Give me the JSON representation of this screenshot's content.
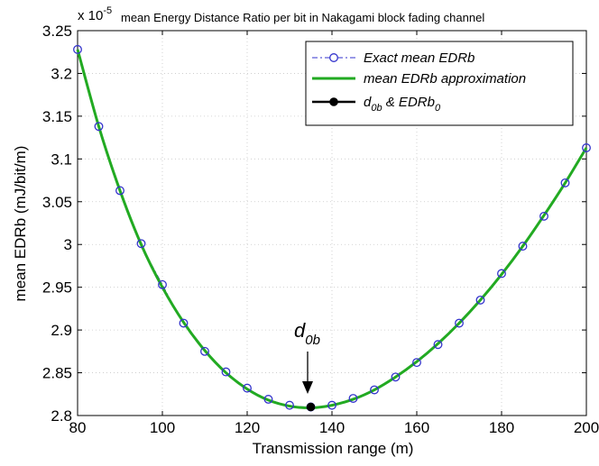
{
  "chart_data": {
    "type": "line",
    "title": "mean Energy Distance Ratio per bit in Nakagami block fading channel",
    "exponent_prefix": "x 10",
    "exponent_power": "-5",
    "xlabel": "Transmission range (m)",
    "ylabel": "mean EDRb (mJ/bit/m)",
    "xlim": [
      80,
      200
    ],
    "ylim": [
      2.8,
      3.25
    ],
    "xticks": [
      80,
      100,
      120,
      140,
      160,
      180,
      200
    ],
    "xtick_labels": [
      "80",
      "100",
      "120",
      "140",
      "160",
      "180",
      "200"
    ],
    "yticks": [
      2.8,
      2.85,
      2.9,
      2.95,
      3.0,
      3.05,
      3.1,
      3.15,
      3.2,
      3.25
    ],
    "ytick_labels": [
      "2.8",
      "2.85",
      "2.9",
      "2.95",
      "3",
      "3.05",
      "3.1",
      "3.15",
      "3.2",
      "3.25"
    ],
    "grid": true,
    "legend_position": "top-right",
    "series": [
      {
        "name": "Exact mean EDRb",
        "style": "dash-dot-circle",
        "color": "#3333cc",
        "x": [
          80,
          85,
          90,
          95,
          100,
          105,
          110,
          115,
          120,
          125,
          130,
          135,
          140,
          145,
          150,
          155,
          160,
          165,
          170,
          175,
          180,
          185,
          190,
          195,
          200
        ],
        "values": [
          3.228,
          3.138,
          3.063,
          3.001,
          2.953,
          2.908,
          2.875,
          2.851,
          2.832,
          2.819,
          2.812,
          2.81,
          2.812,
          2.82,
          2.83,
          2.845,
          2.862,
          2.883,
          2.908,
          2.935,
          2.966,
          2.998,
          3.033,
          3.072,
          3.113
        ]
      },
      {
        "name": "mean EDRb approximation",
        "style": "solid",
        "color": "#22aa22",
        "x": [
          80,
          85,
          90,
          95,
          100,
          105,
          110,
          115,
          120,
          125,
          130,
          135,
          140,
          145,
          150,
          155,
          160,
          165,
          170,
          175,
          180,
          185,
          190,
          195,
          200
        ],
        "values": [
          3.228,
          3.138,
          3.063,
          3.0,
          2.95,
          2.909,
          2.876,
          2.85,
          2.831,
          2.818,
          2.811,
          2.809,
          2.812,
          2.819,
          2.83,
          2.845,
          2.863,
          2.884,
          2.908,
          2.935,
          2.965,
          2.998,
          3.034,
          3.072,
          3.113
        ]
      },
      {
        "name": "d_0b & EDRb_0",
        "style": "marker",
        "color": "#000000",
        "x": [
          135
        ],
        "values": [
          2.81
        ]
      }
    ],
    "legend_labels": [
      {
        "main": "Exact mean EDRb"
      },
      {
        "main": "mean EDRb approximation"
      },
      {
        "a": "d",
        "a_sub": "0b",
        "amp": " & EDRb",
        "b_sub": "0"
      }
    ],
    "annotation": {
      "text": "d",
      "sub": "0b",
      "x": 135,
      "y": 2.81
    }
  }
}
